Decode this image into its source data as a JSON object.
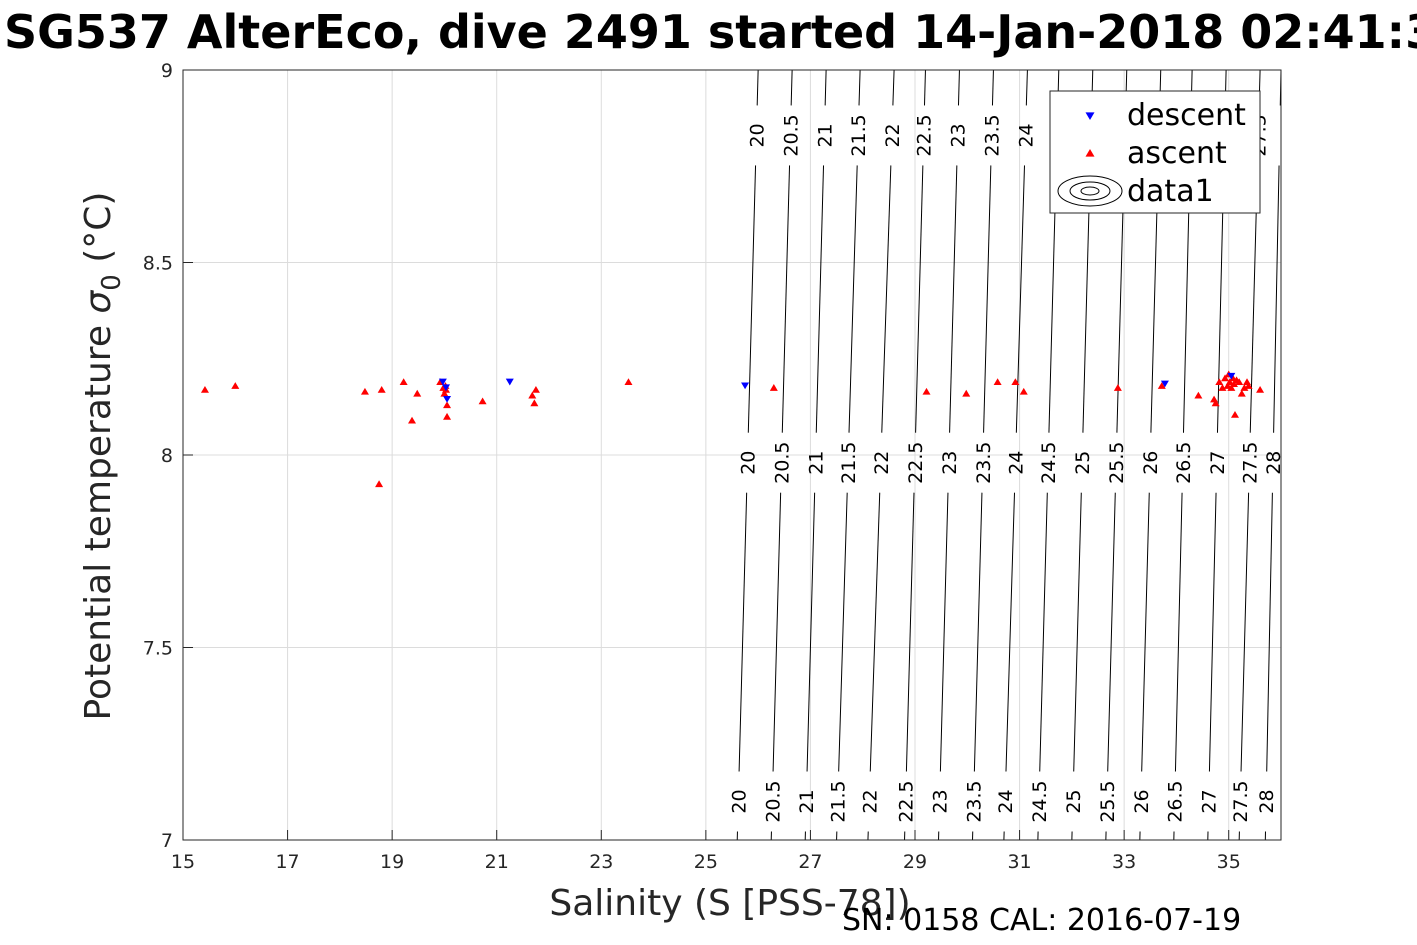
{
  "title": "SG537 AlterEco, dive 2491 started 14-Jan-2018 02:41:3",
  "footer": "SN: 0158  CAL: 2016-07-19",
  "chart_data": {
    "type": "scatter",
    "xlabel": "Salinity (S [PSS-78])",
    "ylabel_main": "Potential temperature ",
    "ylabel_sigma": "σ",
    "ylabel_sub": "0",
    "ylabel_unit": " (°C)",
    "xlim": [
      15,
      36
    ],
    "ylim": [
      7,
      9
    ],
    "xticks": [
      "15",
      "17",
      "19",
      "21",
      "23",
      "25",
      "27",
      "29",
      "31",
      "33",
      "35"
    ],
    "xtick_values": [
      15,
      17,
      19,
      21,
      23,
      25,
      27,
      29,
      31,
      33,
      35
    ],
    "yticks": [
      "7",
      "7.5",
      "8",
      "8.5",
      "9"
    ],
    "ytick_values": [
      7,
      7.5,
      8,
      8.5,
      9
    ],
    "grid": true,
    "legend_position": "top-right",
    "series": [
      {
        "name": "descent",
        "color": "#0000ff",
        "marker": "triangle-down",
        "x": [
          19.97,
          20.03,
          20.05,
          21.25,
          25.75,
          33.78,
          35.05
        ],
        "y": [
          8.19,
          8.175,
          8.145,
          8.19,
          8.18,
          8.185,
          8.205
        ]
      },
      {
        "name": "ascent",
        "color": "#ff0000",
        "marker": "triangle-up",
        "x": [
          15.42,
          16.0,
          18.48,
          18.75,
          18.8,
          19.22,
          19.38,
          19.48,
          19.92,
          19.98,
          20.0,
          20.02,
          20.03,
          20.05,
          20.05,
          20.73,
          21.68,
          21.72,
          21.75,
          23.52,
          26.3,
          29.22,
          29.98,
          30.58,
          30.92,
          31.08,
          32.88,
          33.72,
          34.42,
          34.72,
          34.75,
          34.82,
          34.88,
          34.93,
          34.98,
          35.0,
          35.02,
          35.05,
          35.08,
          35.1,
          35.12,
          35.15,
          35.2,
          35.25,
          35.3,
          35.35,
          35.38,
          35.6
        ],
        "y": [
          8.17,
          8.18,
          8.165,
          7.925,
          8.17,
          8.19,
          8.09,
          8.16,
          8.19,
          8.175,
          8.16,
          8.18,
          8.17,
          8.13,
          8.1,
          8.14,
          8.155,
          8.135,
          8.17,
          8.19,
          8.175,
          8.165,
          8.16,
          8.19,
          8.19,
          8.165,
          8.175,
          8.18,
          8.155,
          8.145,
          8.135,
          8.19,
          8.175,
          8.2,
          8.18,
          8.21,
          8.19,
          8.175,
          8.2,
          8.185,
          8.105,
          8.195,
          8.19,
          8.16,
          8.175,
          8.19,
          8.18,
          8.17
        ]
      }
    ],
    "contours": {
      "name": "data1",
      "levels": [
        20,
        20.5,
        21,
        21.5,
        22,
        22.5,
        23,
        23.5,
        24,
        24.5,
        25,
        25.5,
        26,
        26.5,
        27,
        27.5,
        28
      ],
      "level_labels": [
        "20",
        "20.5",
        "21",
        "21.5",
        "22",
        "22.5",
        "23",
        "23.5",
        "24",
        "24.5",
        "25",
        "25.5",
        "26",
        "26.5",
        "27",
        "27.5",
        "28"
      ],
      "salinity_at_bottom": [
        25.6,
        26.25,
        26.9,
        27.5,
        28.1,
        28.8,
        29.45,
        30.1,
        30.7,
        31.35,
        32.0,
        32.65,
        33.3,
        33.95,
        34.6,
        35.2,
        35.7
      ],
      "salinity_at_top": [
        26.0,
        26.65,
        27.3,
        27.95,
        28.6,
        29.2,
        29.85,
        30.5,
        31.15,
        31.75,
        32.4,
        33.05,
        33.7,
        34.3,
        34.95,
        35.6,
        36.0
      ]
    }
  }
}
